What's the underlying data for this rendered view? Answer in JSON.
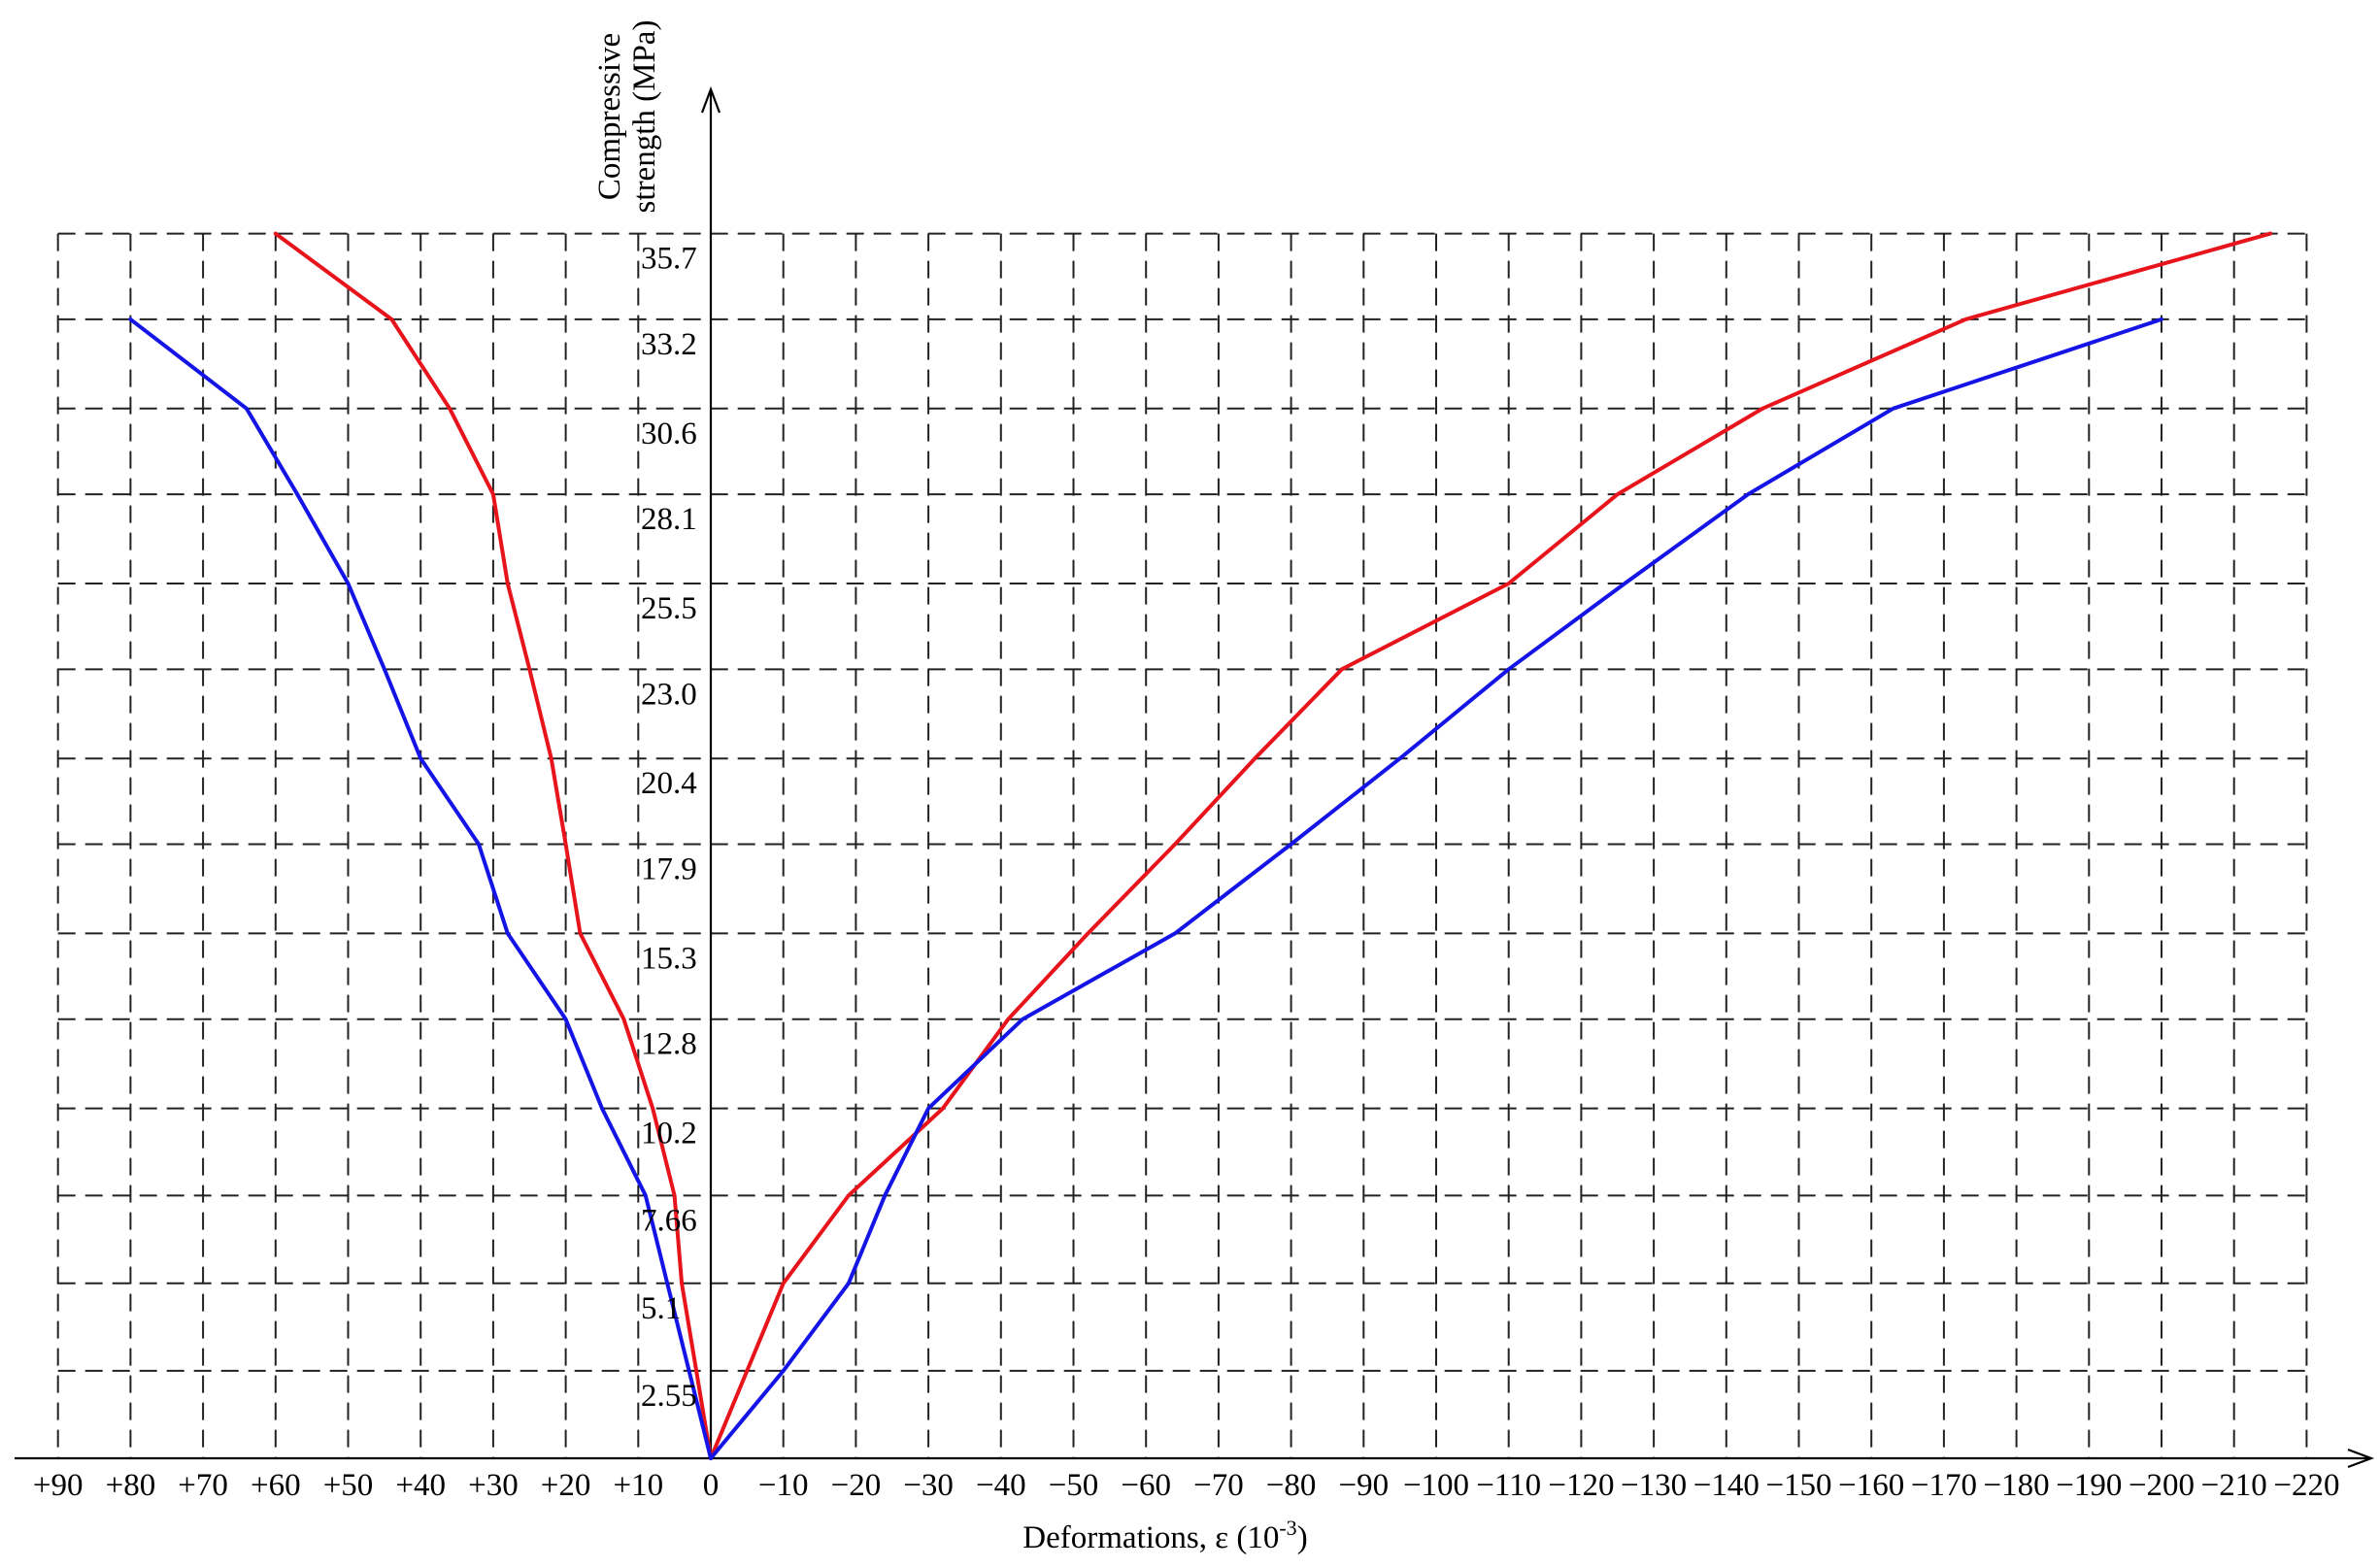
{
  "chart_data": {
    "type": "line",
    "title": "",
    "xlabel": "Deformations, ε (10",
    "xlabel_sup": "-3",
    "xlabel_close": ")",
    "ylabel_line1": "Compressive",
    "ylabel_line2": "strength (MPa)",
    "x_ticks": [
      90,
      80,
      70,
      60,
      50,
      40,
      30,
      20,
      10,
      0,
      -10,
      -20,
      -30,
      -40,
      -50,
      -60,
      -70,
      -80,
      -90,
      -100,
      -110,
      -120,
      -130,
      -140,
      -150,
      -160,
      -170,
      -180,
      -190,
      -200,
      -210,
      -220
    ],
    "x_tick_labels": [
      "+90",
      "+80",
      "+70",
      "+60",
      "+50",
      "+40",
      "+30",
      "+20",
      "+10",
      "0",
      "−10",
      "−20",
      "−30",
      "−40",
      "−50",
      "−60",
      "−70",
      "−80",
      "−90",
      "−100",
      "−110",
      "−120",
      "−130",
      "−140",
      "−150",
      "−160",
      "−170",
      "−180",
      "−190",
      "−200",
      "−210",
      "−220"
    ],
    "y_ticks": [
      2.55,
      5.1,
      7.66,
      10.2,
      12.8,
      15.3,
      17.9,
      20.4,
      23.0,
      25.5,
      28.1,
      30.6,
      33.2,
      35.7
    ],
    "y_tick_labels": [
      "2.55",
      "5.1",
      "7.66",
      "10.2",
      "12.8",
      "15.3",
      "17.9",
      "20.4",
      "23.0",
      "25.5",
      "28.1",
      "30.6",
      "33.2",
      "35.7"
    ],
    "xlim": [
      90,
      -220
    ],
    "ylim": [
      0,
      35.7
    ],
    "grid": true,
    "series": [
      {
        "color": "#e8141c",
        "points": [
          [
            0,
            0
          ],
          [
            2,
            2.55
          ],
          [
            4,
            5.1
          ],
          [
            5,
            7.66
          ],
          [
            8,
            10.2
          ],
          [
            12,
            12.8
          ],
          [
            18,
            15.3
          ],
          [
            20,
            17.9
          ],
          [
            22,
            20.4
          ],
          [
            25,
            23.0
          ],
          [
            28,
            25.5
          ],
          [
            30,
            28.1
          ],
          [
            36,
            30.6
          ],
          [
            44,
            33.2
          ],
          [
            60,
            35.7
          ]
        ]
      },
      {
        "color": "#e8141c",
        "points": [
          [
            0,
            0
          ],
          [
            -10,
            5.1
          ],
          [
            -19,
            7.66
          ],
          [
            -32,
            10.2
          ],
          [
            -41,
            12.8
          ],
          [
            -52,
            15.3
          ],
          [
            -64,
            17.9
          ],
          [
            -75,
            20.4
          ],
          [
            -87,
            23.0
          ],
          [
            -110,
            25.5
          ],
          [
            -125,
            28.1
          ],
          [
            -145,
            30.6
          ],
          [
            -173,
            33.2
          ],
          [
            -215,
            35.7
          ]
        ]
      },
      {
        "color": "#1414e6",
        "points": [
          [
            0,
            0
          ],
          [
            6,
            5.1
          ],
          [
            9,
            7.66
          ],
          [
            15,
            10.2
          ],
          [
            20,
            12.8
          ],
          [
            28,
            15.3
          ],
          [
            32,
            17.9
          ],
          [
            40,
            20.4
          ],
          [
            45,
            23.0
          ],
          [
            50,
            25.5
          ],
          [
            57,
            28.1
          ],
          [
            64,
            30.6
          ],
          [
            80,
            33.2
          ]
        ]
      },
      {
        "color": "#1414e6",
        "points": [
          [
            0,
            0
          ],
          [
            -10,
            2.55
          ],
          [
            -19,
            5.1
          ],
          [
            -24,
            7.66
          ],
          [
            -30,
            10.2
          ],
          [
            -43,
            12.8
          ],
          [
            -64,
            15.3
          ],
          [
            -80,
            17.9
          ],
          [
            -95,
            20.4
          ],
          [
            -110,
            23.0
          ],
          [
            -126,
            25.5
          ],
          [
            -143,
            28.1
          ],
          [
            -163,
            30.6
          ],
          [
            -200,
            33.2
          ]
        ]
      }
    ]
  }
}
